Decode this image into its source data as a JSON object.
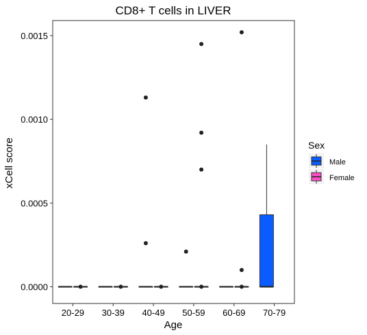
{
  "chart_data": {
    "type": "boxplot",
    "title": "CD8+ T cells in LIVER",
    "xlabel": "Age",
    "ylabel": "xCell score",
    "categories": [
      "20-29",
      "30-39",
      "40-49",
      "50-59",
      "60-69",
      "70-79"
    ],
    "ylim": [
      -0.0001,
      0.00159
    ],
    "yticks": [
      0.0,
      0.0005,
      0.001,
      0.0015
    ],
    "ytick_labels": [
      "0.0000",
      "0.0005",
      "0.0010",
      "0.0015"
    ],
    "legend": {
      "title": "Sex",
      "position": "right",
      "entries": [
        {
          "name": "Male",
          "color": "#0a5cff"
        },
        {
          "name": "Female",
          "color": "#ff4fc8"
        }
      ]
    },
    "series": [
      {
        "name": "Male",
        "color": "#0a5cff",
        "boxes": [
          {
            "category": "20-29",
            "q1": 0,
            "median": 0,
            "q3": 0,
            "min": 0,
            "max": 0,
            "outliers": []
          },
          {
            "category": "30-39",
            "q1": 0,
            "median": 0,
            "q3": 0,
            "min": 0,
            "max": 0,
            "outliers": []
          },
          {
            "category": "40-49",
            "q1": 0,
            "median": 0,
            "q3": 0,
            "min": 0,
            "max": 0,
            "outliers": [
              0.00113,
              0.00026
            ]
          },
          {
            "category": "50-59",
            "q1": 0,
            "median": 0,
            "q3": 0,
            "min": 0,
            "max": 0,
            "outliers": [
              0.00021
            ]
          },
          {
            "category": "60-69",
            "q1": 0,
            "median": 0,
            "q3": 0,
            "min": 0,
            "max": 0,
            "outliers": []
          },
          {
            "category": "70-79",
            "q1": 0,
            "median": 0,
            "q3": 0.00043,
            "min": 0,
            "max": 0.00085,
            "outliers": []
          }
        ]
      },
      {
        "name": "Female",
        "color": "#ff4fc8",
        "boxes": [
          {
            "category": "20-29",
            "q1": 0,
            "median": 0,
            "q3": 0,
            "min": 0,
            "max": 0,
            "outliers": [
              0
            ]
          },
          {
            "category": "30-39",
            "q1": 0,
            "median": 0,
            "q3": 0,
            "min": 0,
            "max": 0,
            "outliers": [
              0
            ]
          },
          {
            "category": "40-49",
            "q1": 0,
            "median": 0,
            "q3": 0,
            "min": 0,
            "max": 0,
            "outliers": [
              0
            ]
          },
          {
            "category": "50-59",
            "q1": 0,
            "median": 0,
            "q3": 0,
            "min": 0,
            "max": 0,
            "outliers": [
              0.00145,
              0.00092,
              0.0007,
              0
            ]
          },
          {
            "category": "60-69",
            "q1": 0,
            "median": 0,
            "q3": 0,
            "min": 0,
            "max": 0,
            "outliers": [
              0.00152,
              0.0001,
              0
            ]
          }
        ]
      }
    ],
    "grid": false
  }
}
